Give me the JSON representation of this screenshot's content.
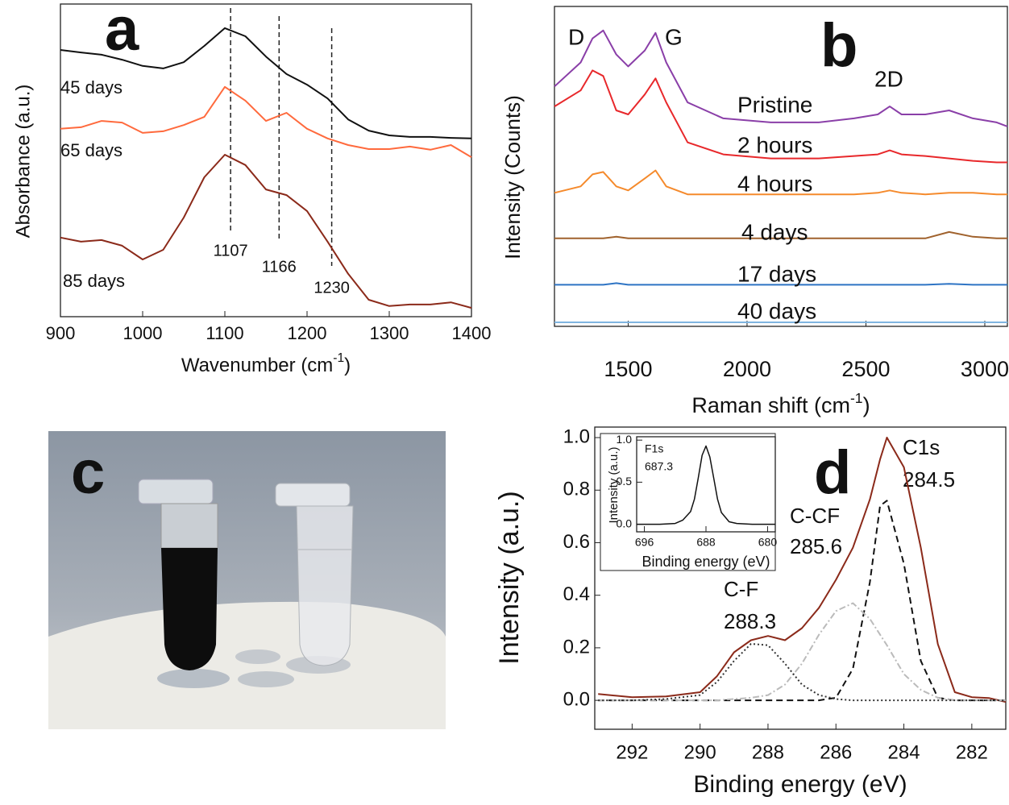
{
  "chart_data": [
    {
      "type": "line",
      "panel_label": "a",
      "xlabel": [
        "Wavenumber (cm",
        "-1",
        ")"
      ],
      "ylabel": "Absorbance (a.u.)",
      "x": [
        900,
        925,
        950,
        975,
        1000,
        1025,
        1050,
        1075,
        1100,
        1125,
        1150,
        1175,
        1200,
        1225,
        1250,
        1275,
        1300,
        1325,
        1350,
        1375,
        1400
      ],
      "xlim": [
        900,
        1400
      ],
      "xticks": [
        900,
        1000,
        1100,
        1200,
        1300,
        1400
      ],
      "ylim": [
        0,
        10
      ],
      "series": [
        {
          "name": "45 days",
          "color": "#111111",
          "values": [
            8.53,
            8.45,
            8.38,
            8.22,
            8.02,
            7.94,
            8.14,
            8.66,
            9.23,
            8.97,
            8.32,
            7.76,
            7.42,
            6.98,
            6.31,
            5.95,
            5.8,
            5.75,
            5.75,
            5.72,
            5.7
          ]
        },
        {
          "name": "65 days",
          "color": "#ff6a3d",
          "values": [
            6.01,
            6.06,
            6.26,
            6.21,
            5.88,
            5.93,
            6.13,
            6.39,
            7.35,
            6.91,
            6.26,
            6.52,
            6.01,
            5.7,
            5.49,
            5.36,
            5.36,
            5.44,
            5.34,
            5.49,
            5.1
          ]
        },
        {
          "name": "85 days",
          "color": "#8b2a1a",
          "values": [
            2.53,
            2.4,
            2.45,
            2.27,
            1.83,
            2.14,
            3.17,
            4.46,
            5.18,
            4.85,
            4.07,
            3.89,
            3.38,
            2.4,
            1.37,
            0.54,
            0.34,
            0.39,
            0.39,
            0.46,
            0.28
          ]
        }
      ],
      "vlines": [
        1107,
        1166,
        1230
      ]
    },
    {
      "type": "line",
      "panel_label": "b",
      "xlabel": [
        "Raman shift (cm",
        "-1",
        ")"
      ],
      "ylabel": "Intensity (Counts)",
      "x": [
        1190,
        1300,
        1350,
        1395,
        1450,
        1500,
        1570,
        1615,
        1660,
        1750,
        1900,
        2100,
        2300,
        2450,
        2550,
        2600,
        2650,
        2750,
        2850,
        2950,
        3050,
        3095
      ],
      "xlim": [
        1190,
        3095
      ],
      "xticks": [
        1500,
        2000,
        2500,
        3000
      ],
      "ylim": [
        0,
        10
      ],
      "peak_labels": [
        "D",
        "G",
        "2D"
      ],
      "series": [
        {
          "name": "Pristine",
          "color": "#8a3fa8",
          "values": [
            7.5,
            8.25,
            9.0,
            9.25,
            8.5,
            8.125,
            8.625,
            9.175,
            8.25,
            7.0,
            6.5,
            6.375,
            6.375,
            6.5,
            6.625,
            6.875,
            6.625,
            6.625,
            6.75,
            6.5,
            6.375,
            6.25
          ]
        },
        {
          "name": "2 hours",
          "color": "#e8282b",
          "values": [
            6.875,
            7.375,
            8.0,
            7.825,
            6.75,
            6.625,
            7.25,
            7.75,
            7.0,
            5.75,
            5.375,
            5.25,
            5.25,
            5.325,
            5.375,
            5.5,
            5.375,
            5.325,
            5.25,
            5.175,
            5.125,
            5.125
          ]
        },
        {
          "name": "4 hours",
          "color": "#f58a2c",
          "values": [
            4.175,
            4.375,
            4.75,
            4.825,
            4.375,
            4.25,
            4.625,
            4.875,
            4.375,
            4.125,
            4.125,
            4.125,
            4.125,
            4.125,
            4.175,
            4.25,
            4.175,
            4.125,
            4.175,
            4.175,
            4.125,
            4.125
          ]
        },
        {
          "name": "4 days",
          "color": "#a0622d",
          "values": [
            2.75,
            2.75,
            2.75,
            2.75,
            2.8,
            2.75,
            2.75,
            2.75,
            2.75,
            2.75,
            2.75,
            2.75,
            2.75,
            2.75,
            2.75,
            2.75,
            2.75,
            2.75,
            2.95,
            2.8,
            2.75,
            2.75
          ]
        },
        {
          "name": "17 days",
          "color": "#2e74c4",
          "values": [
            1.3,
            1.3,
            1.3,
            1.3,
            1.35,
            1.3,
            1.3,
            1.3,
            1.3,
            1.3,
            1.3,
            1.3,
            1.3,
            1.3,
            1.3,
            1.3,
            1.3,
            1.3,
            1.33,
            1.3,
            1.3,
            1.3
          ]
        },
        {
          "name": "40 days",
          "color": "#7fb5e0",
          "values": [
            0.125,
            0.125,
            0.125,
            0.125,
            0.125,
            0.125,
            0.125,
            0.125,
            0.125,
            0.125,
            0.125,
            0.125,
            0.125,
            0.125,
            0.125,
            0.125,
            0.125,
            0.125,
            0.125,
            0.125,
            0.125,
            0.125
          ]
        }
      ]
    },
    {
      "type": "line",
      "panel_label": "d",
      "xlabel": [
        "Binding energy (eV)"
      ],
      "ylabel": "Intensity (a.u.)",
      "x": [
        293,
        292,
        291,
        290,
        289.5,
        289,
        288.5,
        288,
        287.5,
        287,
        286.5,
        286,
        285.5,
        285,
        284.7,
        284.5,
        284,
        283.5,
        283,
        282.5,
        282,
        281.5,
        281
      ],
      "xlim": [
        293.1,
        281
      ],
      "xticks": [
        292,
        290,
        288,
        286,
        284,
        282
      ],
      "ylim": [
        -0.11,
        1.04
      ],
      "yticks": [
        {
          "value": 0,
          "label": "0.0"
        },
        0.2,
        0.4,
        0.6,
        0.8,
        {
          "value": 1,
          "label": "1.0"
        }
      ],
      "label_color": "#8b2a1a",
      "peak_labels": [
        [
          "C1s",
          "284.5"
        ],
        [
          "C-CF",
          "285.6"
        ],
        [
          "C-F",
          "288.3"
        ]
      ],
      "series": [
        {
          "color": "#8b2a1a",
          "dash": "solid",
          "values": [
            0.024,
            0.012,
            0.015,
            0.031,
            0.092,
            0.183,
            0.229,
            0.245,
            0.229,
            0.275,
            0.352,
            0.459,
            0.581,
            0.765,
            0.917,
            1.0,
            0.887,
            0.581,
            0.214,
            0.031,
            0.012,
            0.009,
            -0.006
          ]
        },
        {
          "color": "#111111",
          "dash": "dashed",
          "values": [
            0,
            0,
            0,
            0,
            0,
            0,
            0,
            0,
            0,
            0,
            0,
            0.01,
            0.12,
            0.45,
            0.74,
            0.76,
            0.52,
            0.15,
            0.01,
            0,
            0,
            0,
            0
          ]
        },
        {
          "color": "#bbbbbb",
          "dash": "dashdot",
          "values": [
            0,
            0,
            0,
            0,
            0,
            0.005,
            0.01,
            0.02,
            0.06,
            0.14,
            0.25,
            0.34,
            0.37,
            0.31,
            0.25,
            0.21,
            0.1,
            0.04,
            0.01,
            0,
            0,
            0,
            0
          ]
        },
        {
          "color": "#333333",
          "dash": "dotted",
          "values": [
            0,
            0,
            0.005,
            0.02,
            0.07,
            0.15,
            0.215,
            0.21,
            0.14,
            0.06,
            0.02,
            0.005,
            0,
            0,
            0,
            0,
            0,
            0,
            0,
            0,
            0,
            0,
            0
          ]
        }
      ]
    },
    {
      "type": "line",
      "title": "F1s",
      "annotation": "687.3",
      "xlabel": [
        "Binding energy (eV)"
      ],
      "ylabel": "Intensity (a.u.)",
      "x": [
        697,
        696,
        694,
        692,
        691,
        690,
        689.5,
        689,
        688.5,
        688,
        687.5,
        687,
        686.5,
        686,
        685,
        684,
        682,
        680,
        679
      ],
      "xlim": [
        697,
        679
      ],
      "xticks": [
        696,
        688,
        680
      ],
      "ylim": [
        -0.09,
        1.04
      ],
      "yticks": [
        {
          "value": 0,
          "label": "0.0"
        },
        0.5,
        {
          "value": 1,
          "label": "1.0"
        }
      ],
      "series": [
        {
          "color": "#111111",
          "dash": "solid",
          "values": [
            0,
            0,
            0,
            0.01,
            0.05,
            0.15,
            0.3,
            0.55,
            0.82,
            0.93,
            0.8,
            0.55,
            0.3,
            0.14,
            0.03,
            0.01,
            0,
            0,
            0
          ]
        }
      ]
    }
  ],
  "photo_panel": {
    "label": "c"
  }
}
